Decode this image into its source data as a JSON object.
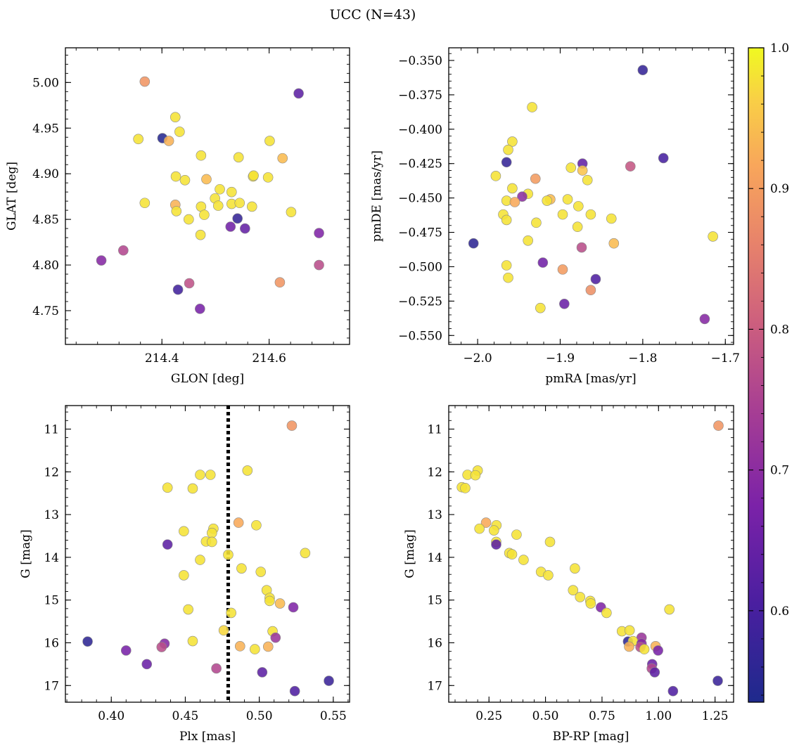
{
  "figure": {
    "title": "UCC (N=43)"
  },
  "colorbar": {
    "min": 0.535,
    "max": 1.0,
    "ticks": [
      0.6,
      0.7,
      0.8,
      0.9,
      1.0
    ],
    "tick_labels": [
      "0.6",
      "0.7",
      "0.8",
      "0.9",
      "1.0"
    ],
    "colormap": "plasma"
  },
  "chart_data": [
    {
      "type": "scatter",
      "id": "sky",
      "xlabel": "GLON [deg]",
      "ylabel": "GLAT [deg]",
      "xlim": [
        214.22,
        214.75
      ],
      "ylim": [
        4.713,
        5.038
      ],
      "xticks": [
        214.4,
        214.6
      ],
      "xtick_labels": [
        "214.4",
        "214.6"
      ],
      "yticks": [
        4.75,
        4.8,
        4.85,
        4.9,
        4.95,
        5.0
      ],
      "ytick_labels": [
        "4.75",
        "4.80",
        "4.85",
        "4.90",
        "4.95",
        "5.00"
      ],
      "points": [
        {
          "x": 214.368,
          "y": 5.001,
          "c": 0.89
        },
        {
          "x": 214.655,
          "y": 4.988,
          "c": 0.63
        },
        {
          "x": 214.425,
          "y": 4.962,
          "c": 0.98
        },
        {
          "x": 214.433,
          "y": 4.946,
          "c": 0.98
        },
        {
          "x": 214.356,
          "y": 4.938,
          "c": 0.98
        },
        {
          "x": 214.401,
          "y": 4.939,
          "c": 0.55
        },
        {
          "x": 214.413,
          "y": 4.936,
          "c": 0.93
        },
        {
          "x": 214.601,
          "y": 4.936,
          "c": 0.98
        },
        {
          "x": 214.473,
          "y": 4.92,
          "c": 0.98
        },
        {
          "x": 214.543,
          "y": 4.918,
          "c": 0.98
        },
        {
          "x": 214.625,
          "y": 4.917,
          "c": 0.94
        },
        {
          "x": 214.426,
          "y": 4.897,
          "c": 0.98
        },
        {
          "x": 214.443,
          "y": 4.893,
          "c": 0.98
        },
        {
          "x": 214.483,
          "y": 4.894,
          "c": 0.94
        },
        {
          "x": 214.57,
          "y": 4.897,
          "c": 0.98
        },
        {
          "x": 214.571,
          "y": 4.898,
          "c": 0.98
        },
        {
          "x": 214.598,
          "y": 4.896,
          "c": 0.98
        },
        {
          "x": 214.508,
          "y": 4.883,
          "c": 0.98
        },
        {
          "x": 214.53,
          "y": 4.88,
          "c": 0.98
        },
        {
          "x": 214.499,
          "y": 4.873,
          "c": 0.98
        },
        {
          "x": 214.368,
          "y": 4.868,
          "c": 0.98
        },
        {
          "x": 214.425,
          "y": 4.866,
          "c": 0.93
        },
        {
          "x": 214.473,
          "y": 4.864,
          "c": 0.98
        },
        {
          "x": 214.505,
          "y": 4.865,
          "c": 0.98
        },
        {
          "x": 214.53,
          "y": 4.867,
          "c": 0.98
        },
        {
          "x": 214.545,
          "y": 4.868,
          "c": 0.98
        },
        {
          "x": 214.568,
          "y": 4.864,
          "c": 0.98
        },
        {
          "x": 214.427,
          "y": 4.859,
          "c": 0.98
        },
        {
          "x": 214.479,
          "y": 4.855,
          "c": 0.98
        },
        {
          "x": 214.641,
          "y": 4.858,
          "c": 0.98
        },
        {
          "x": 214.45,
          "y": 4.85,
          "c": 0.98
        },
        {
          "x": 214.541,
          "y": 4.851,
          "c": 0.57
        },
        {
          "x": 214.528,
          "y": 4.842,
          "c": 0.66
        },
        {
          "x": 214.555,
          "y": 4.84,
          "c": 0.64
        },
        {
          "x": 214.472,
          "y": 4.833,
          "c": 0.98
        },
        {
          "x": 214.693,
          "y": 4.835,
          "c": 0.68
        },
        {
          "x": 214.328,
          "y": 4.816,
          "c": 0.76
        },
        {
          "x": 214.287,
          "y": 4.805,
          "c": 0.69
        },
        {
          "x": 214.693,
          "y": 4.8,
          "c": 0.77
        },
        {
          "x": 214.451,
          "y": 4.78,
          "c": 0.78
        },
        {
          "x": 214.62,
          "y": 4.781,
          "c": 0.89
        },
        {
          "x": 214.43,
          "y": 4.773,
          "c": 0.59
        },
        {
          "x": 214.471,
          "y": 4.752,
          "c": 0.67
        }
      ]
    },
    {
      "type": "scatter",
      "id": "pm",
      "xlabel": "pmRA [mas/yr]",
      "ylabel": "pmDE [mas/yr]",
      "xlim": [
        -2.035,
        -1.69
      ],
      "ylim": [
        -0.5565,
        -0.3408
      ],
      "xticks": [
        -2.0,
        -1.9,
        -1.8,
        -1.7
      ],
      "xtick_labels": [
        "−2.0",
        "−1.9",
        "−1.8",
        "−1.7"
      ],
      "yticks": [
        -0.55,
        -0.525,
        -0.5,
        -0.475,
        -0.45,
        -0.425,
        -0.4,
        -0.375,
        -0.35
      ],
      "ytick_labels": [
        "−0.550",
        "−0.525",
        "−0.500",
        "−0.475",
        "−0.450",
        "−0.425",
        "−0.400",
        "−0.375",
        "−0.350"
      ],
      "points": [
        {
          "x": -1.8,
          "y": -0.357,
          "c": 0.57
        },
        {
          "x": -1.934,
          "y": -0.384,
          "c": 0.98
        },
        {
          "x": -1.958,
          "y": -0.409,
          "c": 0.98
        },
        {
          "x": -1.963,
          "y": -0.415,
          "c": 0.98
        },
        {
          "x": -1.775,
          "y": -0.421,
          "c": 0.6
        },
        {
          "x": -1.965,
          "y": -0.424,
          "c": 0.57
        },
        {
          "x": -1.873,
          "y": -0.425,
          "c": 0.64
        },
        {
          "x": -1.815,
          "y": -0.427,
          "c": 0.79
        },
        {
          "x": -1.887,
          "y": -0.428,
          "c": 0.98
        },
        {
          "x": -1.873,
          "y": -0.43,
          "c": 0.95
        },
        {
          "x": -1.978,
          "y": -0.434,
          "c": 0.98
        },
        {
          "x": -1.93,
          "y": -0.436,
          "c": 0.9
        },
        {
          "x": -1.867,
          "y": -0.437,
          "c": 0.98
        },
        {
          "x": -1.958,
          "y": -0.443,
          "c": 0.98
        },
        {
          "x": -1.939,
          "y": -0.447,
          "c": 0.98
        },
        {
          "x": -1.946,
          "y": -0.449,
          "c": 0.7
        },
        {
          "x": -1.912,
          "y": -0.451,
          "c": 0.94
        },
        {
          "x": -1.916,
          "y": -0.452,
          "c": 0.98
        },
        {
          "x": -1.891,
          "y": -0.451,
          "c": 0.98
        },
        {
          "x": -1.965,
          "y": -0.452,
          "c": 0.98
        },
        {
          "x": -1.955,
          "y": -0.453,
          "c": 0.92
        },
        {
          "x": -1.878,
          "y": -0.456,
          "c": 0.98
        },
        {
          "x": -1.969,
          "y": -0.462,
          "c": 0.98
        },
        {
          "x": -1.897,
          "y": -0.462,
          "c": 0.98
        },
        {
          "x": -1.863,
          "y": -0.462,
          "c": 0.98
        },
        {
          "x": -1.965,
          "y": -0.466,
          "c": 0.98
        },
        {
          "x": -1.838,
          "y": -0.465,
          "c": 0.98
        },
        {
          "x": -1.929,
          "y": -0.468,
          "c": 0.98
        },
        {
          "x": -1.879,
          "y": -0.471,
          "c": 0.98
        },
        {
          "x": -1.715,
          "y": -0.478,
          "c": 0.98
        },
        {
          "x": -1.939,
          "y": -0.481,
          "c": 0.98
        },
        {
          "x": -2.005,
          "y": -0.483,
          "c": 0.56
        },
        {
          "x": -1.835,
          "y": -0.483,
          "c": 0.94
        },
        {
          "x": -1.874,
          "y": -0.486,
          "c": 0.77
        },
        {
          "x": -1.921,
          "y": -0.497,
          "c": 0.66
        },
        {
          "x": -1.965,
          "y": -0.499,
          "c": 0.98
        },
        {
          "x": -1.897,
          "y": -0.502,
          "c": 0.9
        },
        {
          "x": -1.963,
          "y": -0.508,
          "c": 0.98
        },
        {
          "x": -1.857,
          "y": -0.509,
          "c": 0.61
        },
        {
          "x": -1.863,
          "y": -0.517,
          "c": 0.88
        },
        {
          "x": -1.895,
          "y": -0.527,
          "c": 0.65
        },
        {
          "x": -1.924,
          "y": -0.53,
          "c": 0.98
        },
        {
          "x": -1.725,
          "y": -0.538,
          "c": 0.69
        }
      ]
    },
    {
      "type": "scatter",
      "id": "plx",
      "xlabel": "Plx [mas]",
      "ylabel": "G [mag]",
      "xlim": [
        0.369,
        0.561
      ],
      "ylim": [
        17.39,
        10.45
      ],
      "vline": 0.479,
      "xticks": [
        0.4,
        0.45,
        0.5,
        0.55
      ],
      "xtick_labels": [
        "0.40",
        "0.45",
        "0.50",
        "0.55"
      ],
      "yticks": [
        11,
        12,
        13,
        14,
        15,
        16,
        17
      ],
      "ytick_labels": [
        "11",
        "12",
        "13",
        "14",
        "15",
        "16",
        "17"
      ],
      "points": [
        {
          "x": 0.522,
          "y": 10.92,
          "c": 0.89
        },
        {
          "x": 0.492,
          "y": 11.97,
          "c": 0.98
        },
        {
          "x": 0.46,
          "y": 12.07,
          "c": 0.98
        },
        {
          "x": 0.467,
          "y": 12.07,
          "c": 0.98
        },
        {
          "x": 0.438,
          "y": 12.37,
          "c": 0.98
        },
        {
          "x": 0.455,
          "y": 12.39,
          "c": 0.98
        },
        {
          "x": 0.486,
          "y": 13.19,
          "c": 0.92
        },
        {
          "x": 0.498,
          "y": 13.25,
          "c": 0.98
        },
        {
          "x": 0.469,
          "y": 13.33,
          "c": 0.98
        },
        {
          "x": 0.449,
          "y": 13.39,
          "c": 0.98
        },
        {
          "x": 0.468,
          "y": 13.43,
          "c": 0.98
        },
        {
          "x": 0.464,
          "y": 13.63,
          "c": 0.98
        },
        {
          "x": 0.468,
          "y": 13.64,
          "c": 0.98
        },
        {
          "x": 0.438,
          "y": 13.7,
          "c": 0.63
        },
        {
          "x": 0.531,
          "y": 13.9,
          "c": 0.98
        },
        {
          "x": 0.479,
          "y": 13.94,
          "c": 0.98
        },
        {
          "x": 0.46,
          "y": 14.06,
          "c": 0.98
        },
        {
          "x": 0.488,
          "y": 14.26,
          "c": 0.98
        },
        {
          "x": 0.501,
          "y": 14.34,
          "c": 0.98
        },
        {
          "x": 0.449,
          "y": 14.42,
          "c": 0.98
        },
        {
          "x": 0.505,
          "y": 14.77,
          "c": 0.98
        },
        {
          "x": 0.507,
          "y": 14.95,
          "c": 0.98
        },
        {
          "x": 0.507,
          "y": 15.02,
          "c": 0.98
        },
        {
          "x": 0.514,
          "y": 15.08,
          "c": 0.94
        },
        {
          "x": 0.523,
          "y": 15.17,
          "c": 0.68
        },
        {
          "x": 0.452,
          "y": 15.22,
          "c": 0.98
        },
        {
          "x": 0.481,
          "y": 15.3,
          "c": 0.98
        },
        {
          "x": 0.509,
          "y": 15.73,
          "c": 0.98
        },
        {
          "x": 0.476,
          "y": 15.71,
          "c": 0.97
        },
        {
          "x": 0.511,
          "y": 15.88,
          "c": 0.72
        },
        {
          "x": 0.384,
          "y": 15.97,
          "c": 0.56
        },
        {
          "x": 0.455,
          "y": 15.96,
          "c": 0.98
        },
        {
          "x": 0.436,
          "y": 16.02,
          "c": 0.69
        },
        {
          "x": 0.434,
          "y": 16.1,
          "c": 0.77
        },
        {
          "x": 0.487,
          "y": 16.08,
          "c": 0.93
        },
        {
          "x": 0.506,
          "y": 16.09,
          "c": 0.93
        },
        {
          "x": 0.497,
          "y": 16.15,
          "c": 0.98
        },
        {
          "x": 0.41,
          "y": 16.18,
          "c": 0.67
        },
        {
          "x": 0.424,
          "y": 16.5,
          "c": 0.65
        },
        {
          "x": 0.471,
          "y": 16.6,
          "c": 0.76
        },
        {
          "x": 0.502,
          "y": 16.69,
          "c": 0.63
        },
        {
          "x": 0.547,
          "y": 16.89,
          "c": 0.58
        },
        {
          "x": 0.524,
          "y": 17.13,
          "c": 0.61
        }
      ]
    },
    {
      "type": "scatter",
      "id": "cmd",
      "xlabel": "BP-RP [mag]",
      "ylabel": "G [mag]",
      "xlim": [
        0.072,
        1.332
      ],
      "ylim": [
        17.39,
        10.45
      ],
      "xticks": [
        0.25,
        0.5,
        0.75,
        1.0,
        1.25
      ],
      "xtick_labels": [
        "0.25",
        "0.50",
        "0.75",
        "1.00",
        "1.25"
      ],
      "yticks": [
        11,
        12,
        13,
        14,
        15,
        16,
        17
      ],
      "ytick_labels": [
        "11",
        "12",
        "13",
        "14",
        "15",
        "16",
        "17"
      ],
      "points": [
        {
          "x": 1.265,
          "y": 10.92,
          "c": 0.89
        },
        {
          "x": 0.2,
          "y": 11.97,
          "c": 0.98
        },
        {
          "x": 0.155,
          "y": 12.07,
          "c": 0.98
        },
        {
          "x": 0.19,
          "y": 12.08,
          "c": 0.98
        },
        {
          "x": 0.13,
          "y": 12.36,
          "c": 0.98
        },
        {
          "x": 0.145,
          "y": 12.38,
          "c": 0.98
        },
        {
          "x": 0.237,
          "y": 13.19,
          "c": 0.92
        },
        {
          "x": 0.283,
          "y": 13.25,
          "c": 0.98
        },
        {
          "x": 0.208,
          "y": 13.33,
          "c": 0.98
        },
        {
          "x": 0.272,
          "y": 13.37,
          "c": 0.98
        },
        {
          "x": 0.372,
          "y": 13.47,
          "c": 0.98
        },
        {
          "x": 0.282,
          "y": 13.64,
          "c": 0.98
        },
        {
          "x": 0.52,
          "y": 13.64,
          "c": 0.98
        },
        {
          "x": 0.282,
          "y": 13.7,
          "c": 0.63
        },
        {
          "x": 0.34,
          "y": 13.9,
          "c": 0.98
        },
        {
          "x": 0.352,
          "y": 13.93,
          "c": 0.98
        },
        {
          "x": 0.403,
          "y": 14.06,
          "c": 0.98
        },
        {
          "x": 0.63,
          "y": 14.26,
          "c": 0.98
        },
        {
          "x": 0.48,
          "y": 14.34,
          "c": 0.98
        },
        {
          "x": 0.512,
          "y": 14.42,
          "c": 0.98
        },
        {
          "x": 0.622,
          "y": 14.77,
          "c": 0.98
        },
        {
          "x": 0.653,
          "y": 14.93,
          "c": 0.98
        },
        {
          "x": 0.698,
          "y": 15.02,
          "c": 0.98
        },
        {
          "x": 0.7,
          "y": 15.08,
          "c": 0.98
        },
        {
          "x": 0.745,
          "y": 15.17,
          "c": 0.68
        },
        {
          "x": 1.048,
          "y": 15.22,
          "c": 0.98
        },
        {
          "x": 0.77,
          "y": 15.3,
          "c": 0.98
        },
        {
          "x": 0.838,
          "y": 15.73,
          "c": 0.98
        },
        {
          "x": 0.872,
          "y": 15.71,
          "c": 0.98
        },
        {
          "x": 0.925,
          "y": 15.88,
          "c": 0.72
        },
        {
          "x": 0.865,
          "y": 15.97,
          "c": 0.56
        },
        {
          "x": 0.887,
          "y": 15.96,
          "c": 0.98
        },
        {
          "x": 0.925,
          "y": 16.02,
          "c": 0.69
        },
        {
          "x": 0.987,
          "y": 16.08,
          "c": 0.93
        },
        {
          "x": 0.92,
          "y": 16.1,
          "c": 0.77
        },
        {
          "x": 0.87,
          "y": 16.09,
          "c": 0.93
        },
        {
          "x": 0.937,
          "y": 16.15,
          "c": 0.98
        },
        {
          "x": 0.998,
          "y": 16.18,
          "c": 0.67
        },
        {
          "x": 0.972,
          "y": 16.5,
          "c": 0.65
        },
        {
          "x": 0.97,
          "y": 16.6,
          "c": 0.76
        },
        {
          "x": 0.983,
          "y": 16.69,
          "c": 0.63
        },
        {
          "x": 1.262,
          "y": 16.89,
          "c": 0.58
        },
        {
          "x": 1.064,
          "y": 17.13,
          "c": 0.61
        }
      ]
    }
  ]
}
